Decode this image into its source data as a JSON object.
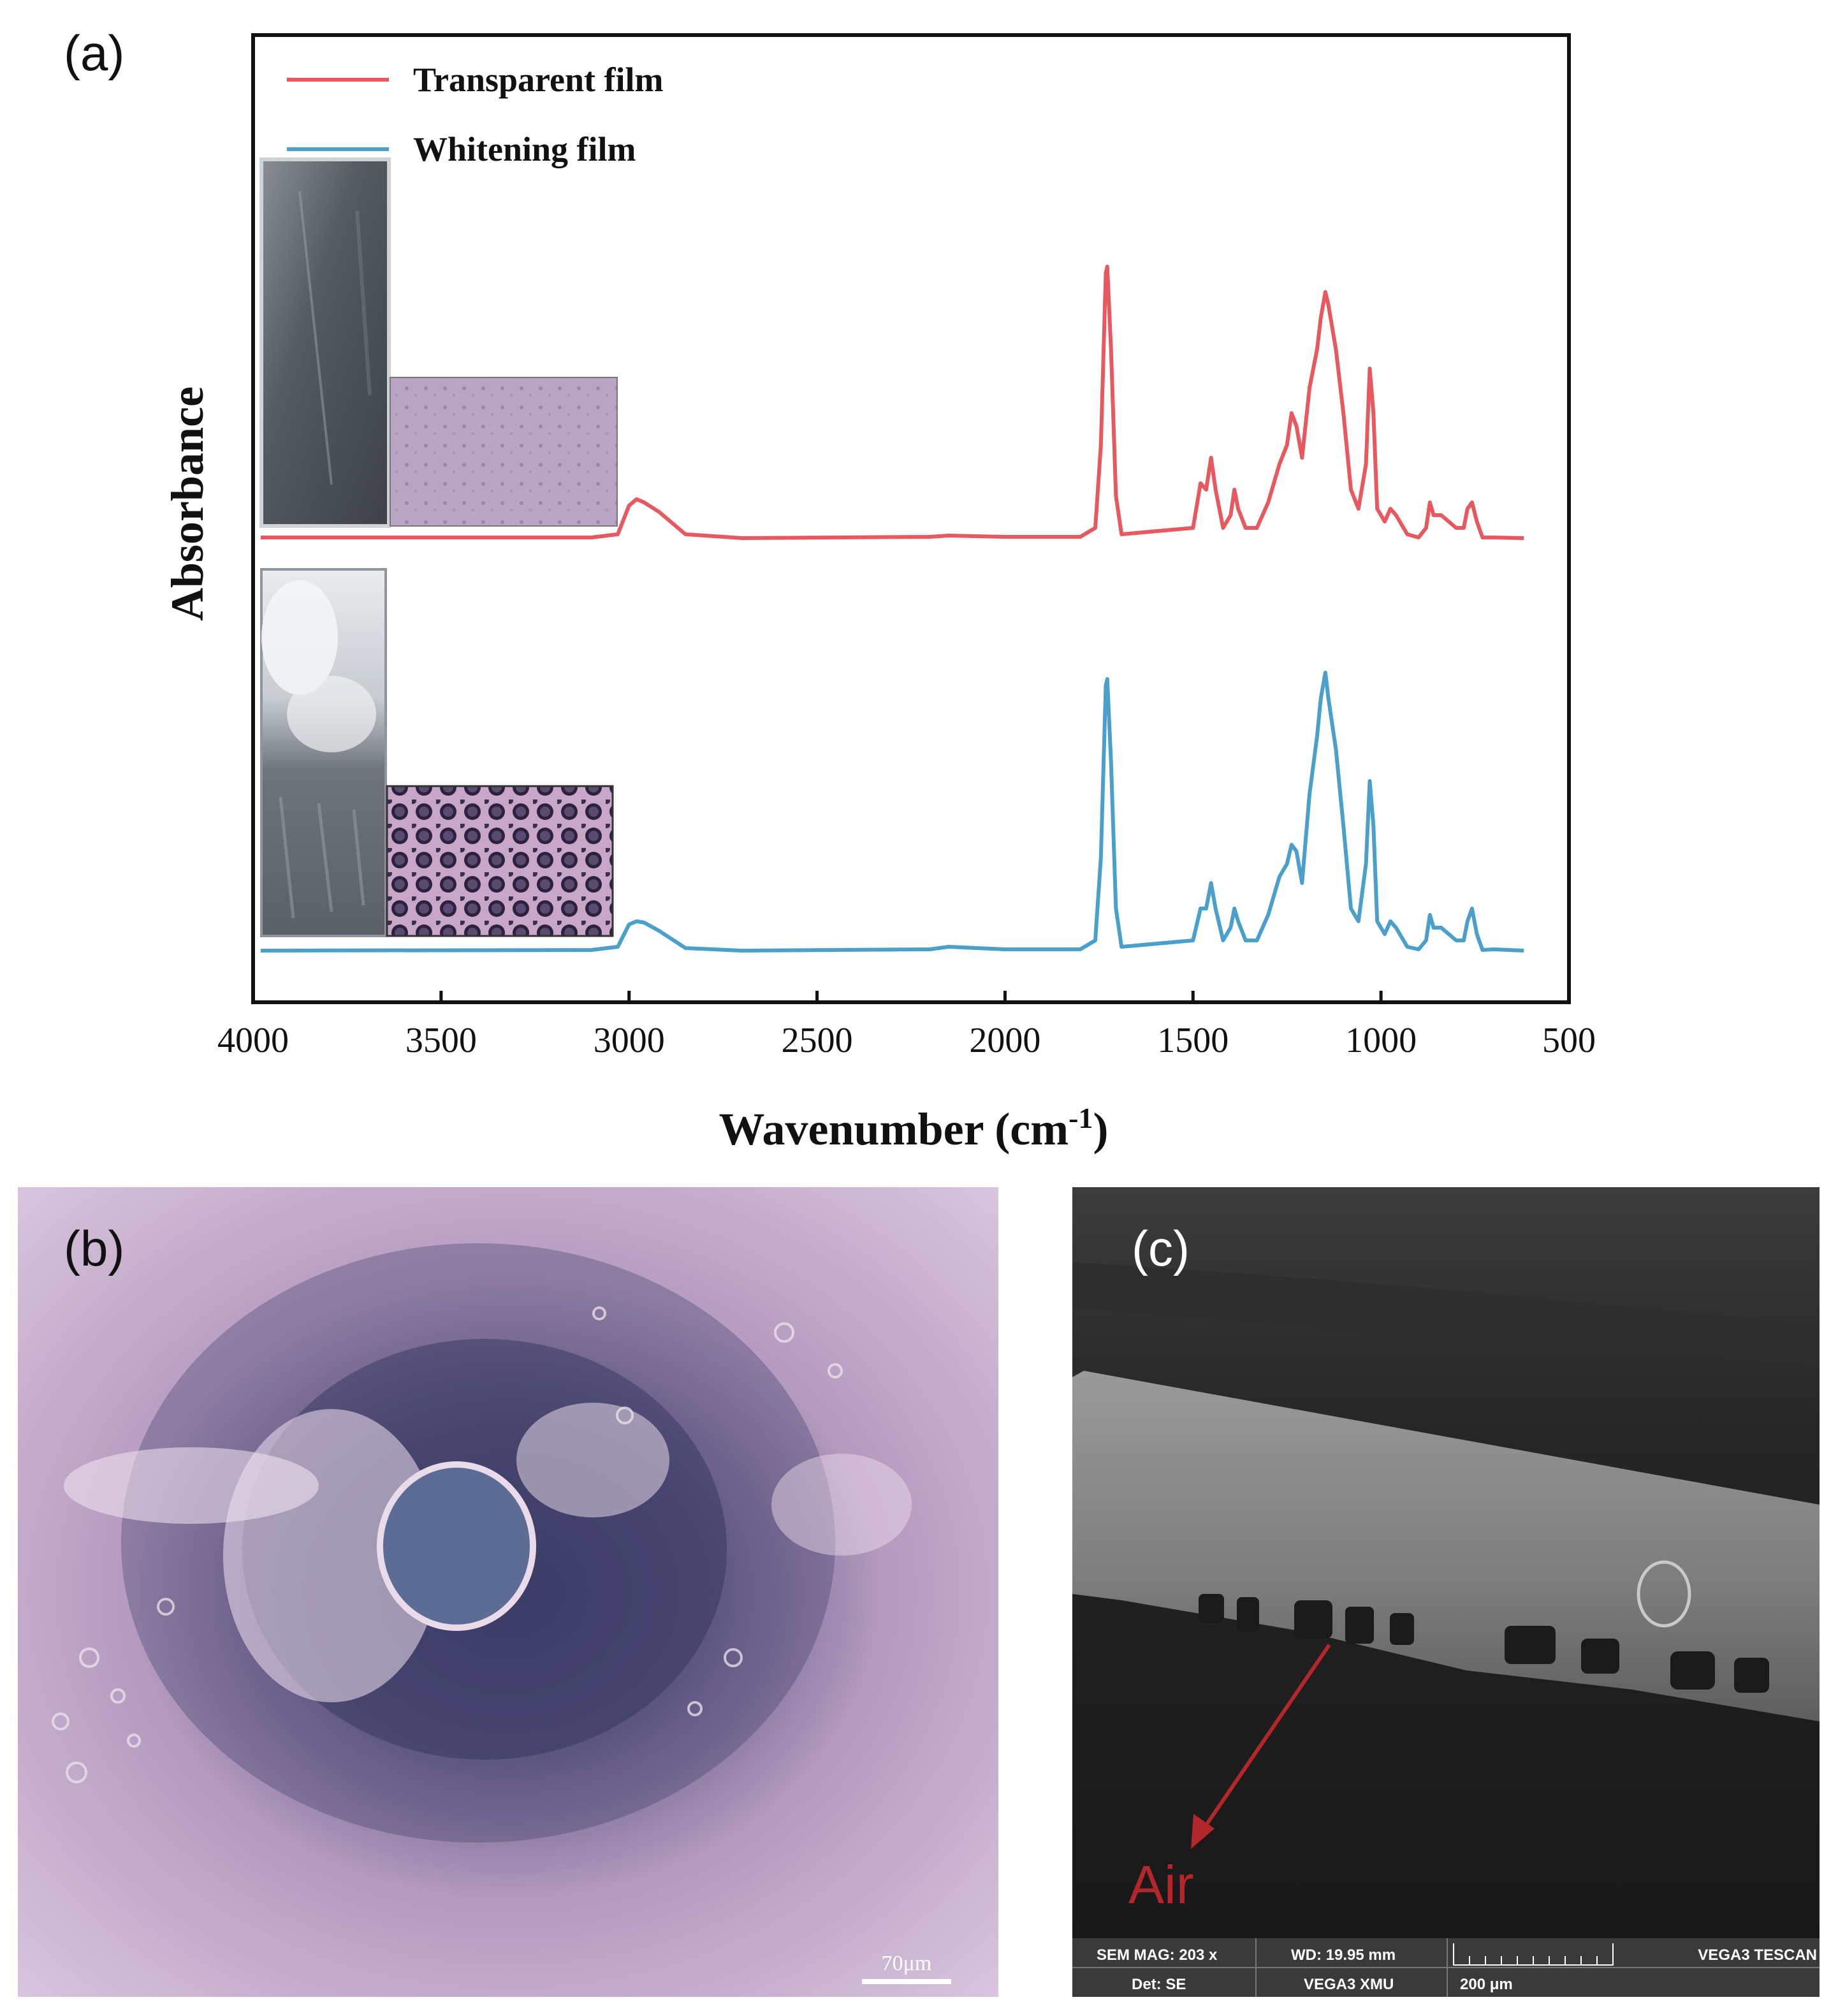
{
  "panel_labels": {
    "a": "(a)",
    "b": "(b)",
    "c": "(c)"
  },
  "colors": {
    "transparent": "#e8585f",
    "whitening": "#4a9fcb"
  },
  "chart_data": {
    "type": "line",
    "xlabel_main": "Wavenumber (cm",
    "xlabel_sup": "-1",
    "xlabel_tail": ")",
    "ylabel": "Absorbance",
    "xlim": [
      4000,
      500
    ],
    "x_reversed": true,
    "xticks": [
      4000,
      3500,
      3000,
      2500,
      2000,
      1500,
      1000,
      500
    ],
    "ylim": [
      0,
      1
    ],
    "y_ticks_shown": false,
    "grid": false,
    "legend_position": "top-left",
    "series": [
      {
        "name": "Transparent film",
        "color": "#e8585f",
        "offset": 0.5,
        "points": [
          [
            3980,
            0.005
          ],
          [
            3100,
            0.005
          ],
          [
            3030,
            0.01
          ],
          [
            3000,
            0.055
          ],
          [
            2980,
            0.065
          ],
          [
            2960,
            0.06
          ],
          [
            2920,
            0.045
          ],
          [
            2850,
            0.01
          ],
          [
            2700,
            0.004
          ],
          [
            2200,
            0.006
          ],
          [
            2150,
            0.008
          ],
          [
            2000,
            0.006
          ],
          [
            1800,
            0.006
          ],
          [
            1760,
            0.02
          ],
          [
            1745,
            0.15
          ],
          [
            1732,
            0.42
          ],
          [
            1728,
            0.43
          ],
          [
            1718,
            0.3
          ],
          [
            1705,
            0.07
          ],
          [
            1690,
            0.01
          ],
          [
            1500,
            0.02
          ],
          [
            1480,
            0.09
          ],
          [
            1465,
            0.08
          ],
          [
            1452,
            0.13
          ],
          [
            1440,
            0.08
          ],
          [
            1420,
            0.02
          ],
          [
            1400,
            0.04
          ],
          [
            1390,
            0.08
          ],
          [
            1380,
            0.05
          ],
          [
            1360,
            0.02
          ],
          [
            1330,
            0.02
          ],
          [
            1300,
            0.06
          ],
          [
            1270,
            0.12
          ],
          [
            1250,
            0.15
          ],
          [
            1238,
            0.2
          ],
          [
            1225,
            0.18
          ],
          [
            1210,
            0.13
          ],
          [
            1190,
            0.24
          ],
          [
            1170,
            0.3
          ],
          [
            1160,
            0.35
          ],
          [
            1148,
            0.39
          ],
          [
            1140,
            0.37
          ],
          [
            1120,
            0.3
          ],
          [
            1100,
            0.2
          ],
          [
            1080,
            0.08
          ],
          [
            1060,
            0.05
          ],
          [
            1040,
            0.12
          ],
          [
            1030,
            0.27
          ],
          [
            1020,
            0.2
          ],
          [
            1010,
            0.05
          ],
          [
            990,
            0.03
          ],
          [
            975,
            0.05
          ],
          [
            960,
            0.04
          ],
          [
            930,
            0.01
          ],
          [
            900,
            0.005
          ],
          [
            880,
            0.02
          ],
          [
            870,
            0.06
          ],
          [
            860,
            0.04
          ],
          [
            840,
            0.04
          ],
          [
            820,
            0.03
          ],
          [
            800,
            0.02
          ],
          [
            780,
            0.02
          ],
          [
            770,
            0.05
          ],
          [
            758,
            0.06
          ],
          [
            745,
            0.03
          ],
          [
            730,
            0.005
          ],
          [
            700,
            0.005
          ],
          [
            620,
            0.004
          ]
        ]
      },
      {
        "name": "Whitening film",
        "color": "#4a9fcb",
        "offset": 0.0,
        "points": [
          [
            3980,
            0.004
          ],
          [
            3100,
            0.005
          ],
          [
            3030,
            0.01
          ],
          [
            3000,
            0.045
          ],
          [
            2980,
            0.05
          ],
          [
            2960,
            0.048
          ],
          [
            2920,
            0.035
          ],
          [
            2850,
            0.008
          ],
          [
            2700,
            0.004
          ],
          [
            2200,
            0.006
          ],
          [
            2150,
            0.01
          ],
          [
            2000,
            0.006
          ],
          [
            1800,
            0.006
          ],
          [
            1760,
            0.02
          ],
          [
            1745,
            0.15
          ],
          [
            1732,
            0.42
          ],
          [
            1728,
            0.43
          ],
          [
            1718,
            0.3
          ],
          [
            1705,
            0.07
          ],
          [
            1690,
            0.01
          ],
          [
            1500,
            0.02
          ],
          [
            1480,
            0.07
          ],
          [
            1465,
            0.07
          ],
          [
            1452,
            0.11
          ],
          [
            1440,
            0.07
          ],
          [
            1420,
            0.02
          ],
          [
            1400,
            0.04
          ],
          [
            1390,
            0.07
          ],
          [
            1380,
            0.05
          ],
          [
            1360,
            0.02
          ],
          [
            1330,
            0.02
          ],
          [
            1300,
            0.06
          ],
          [
            1270,
            0.12
          ],
          [
            1250,
            0.14
          ],
          [
            1238,
            0.17
          ],
          [
            1225,
            0.16
          ],
          [
            1210,
            0.11
          ],
          [
            1190,
            0.25
          ],
          [
            1170,
            0.34
          ],
          [
            1160,
            0.4
          ],
          [
            1148,
            0.44
          ],
          [
            1140,
            0.4
          ],
          [
            1120,
            0.32
          ],
          [
            1100,
            0.2
          ],
          [
            1080,
            0.07
          ],
          [
            1060,
            0.05
          ],
          [
            1040,
            0.14
          ],
          [
            1030,
            0.27
          ],
          [
            1020,
            0.2
          ],
          [
            1010,
            0.05
          ],
          [
            990,
            0.03
          ],
          [
            975,
            0.05
          ],
          [
            960,
            0.04
          ],
          [
            930,
            0.01
          ],
          [
            900,
            0.006
          ],
          [
            880,
            0.02
          ],
          [
            870,
            0.06
          ],
          [
            860,
            0.04
          ],
          [
            840,
            0.04
          ],
          [
            820,
            0.03
          ],
          [
            800,
            0.02
          ],
          [
            780,
            0.02
          ],
          [
            770,
            0.05
          ],
          [
            758,
            0.07
          ],
          [
            745,
            0.03
          ],
          [
            730,
            0.005
          ],
          [
            700,
            0.006
          ],
          [
            620,
            0.004
          ]
        ]
      }
    ]
  },
  "panel_b": {
    "scale_bar": "70μm"
  },
  "panel_c": {
    "annotation": "Air",
    "info_bar": {
      "mag": "SEM MAG: 203 x",
      "wd": "WD: 19.95 mm",
      "brand": "VEGA3 TESCAN",
      "det": "Det: SE",
      "instrument": "VEGA3 XMU",
      "scale": "200 μm"
    }
  }
}
